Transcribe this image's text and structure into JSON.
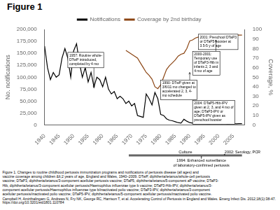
{
  "chart_data": {
    "type": "line",
    "title": "Figure 1",
    "ylabel": "No. notifications",
    "y2label": "Coverage, %",
    "xlim": [
      1940,
      2009
    ],
    "xticks": [
      1940,
      1945,
      1950,
      1955,
      1960,
      1965,
      1970,
      1975,
      1980,
      1985,
      1990,
      1995,
      2000,
      2005
    ],
    "ylim": [
      0,
      200000
    ],
    "yticks": [
      0,
      {
        "value": 25000,
        "label": "25,000"
      },
      {
        "value": 50000,
        "label": "50,000"
      },
      {
        "value": 75000,
        "label": "75,000"
      },
      {
        "value": 100000,
        "label": "100,000"
      },
      {
        "value": 125000,
        "label": "125,000"
      },
      {
        "value": 150000,
        "label": "150,000"
      },
      {
        "value": 175000,
        "label": "175,000"
      },
      {
        "value": 200000,
        "label": "200,000"
      }
    ],
    "y2lim": [
      0,
      100
    ],
    "y2ticks": [
      0,
      10,
      20,
      30,
      40,
      50,
      60,
      70,
      80,
      90,
      100
    ],
    "grid": false,
    "legend": "top",
    "series": [
      {
        "name": "Notifications",
        "color": "#000000",
        "x": [
          1940,
          1941,
          1942,
          1943,
          1944,
          1945,
          1946,
          1947,
          1948,
          1949,
          1950,
          1951,
          1952,
          1953,
          1954,
          1955,
          1956,
          1957,
          1958,
          1959,
          1960,
          1961,
          1962,
          1963,
          1964,
          1965,
          1966,
          1967,
          1968,
          1969,
          1970,
          1971,
          1972,
          1973,
          1974,
          1975,
          1976,
          1977,
          1978,
          1979,
          1980,
          1981,
          1982,
          1983,
          1984,
          1985,
          1986,
          1987,
          1988,
          1989,
          1990,
          1991,
          1992,
          1993,
          1994,
          1995,
          1996,
          1997,
          1998,
          1999,
          2000,
          2001,
          2002,
          2003,
          2004,
          2005,
          2006,
          2007,
          2008
        ],
        "values": [
          165000,
          120000,
          95000,
          110000,
          100000,
          105000,
          140000,
          160000,
          140000,
          100000,
          155000,
          170000,
          130000,
          100000,
          120000,
          90000,
          110000,
          80000,
          100000,
          95000,
          80000,
          100000,
          75000,
          65000,
          70000,
          55000,
          60000,
          55000,
          45000,
          50000,
          40000,
          45000,
          20000,
          18000,
          16000,
          65000,
          55000,
          42000,
          68000,
          55000,
          22000,
          20000,
          13000,
          10000,
          9000,
          7000,
          5000,
          4000,
          12000,
          8000,
          5000,
          4000,
          3000,
          4000,
          4000,
          4000,
          3000,
          3000,
          5000,
          4000,
          4000,
          3000,
          3500,
          2500,
          3000,
          2800,
          2500,
          2800,
          3000
        ]
      },
      {
        "name": "Coverage by 2nd birthday",
        "color": "#8B4513",
        "axis": "y2",
        "x": [
          1968,
          1969,
          1970,
          1971,
          1972,
          1973,
          1974,
          1975,
          1976,
          1977,
          1978,
          1979,
          1980,
          1981,
          1982,
          1983,
          1984,
          1985,
          1986,
          1987,
          1988,
          1989,
          1990,
          1991,
          1992,
          1993,
          1994,
          1995,
          1996,
          1997,
          1998,
          1999,
          2000,
          2001,
          2002,
          2003,
          2004,
          2005,
          2006,
          2007,
          2008
        ],
        "values": [
          78,
          76,
          74,
          72,
          70,
          65,
          60,
          55,
          52,
          48,
          40,
          38,
          42,
          50,
          58,
          62,
          65,
          68,
          72,
          74,
          75,
          80,
          88,
          89,
          91,
          92,
          93,
          93,
          93,
          94,
          94,
          94,
          93,
          94,
          93,
          94,
          94,
          94,
          94,
          94,
          94
        ]
      }
    ],
    "annotations": [
      {
        "text": "1957: Routine whole-\nDTwP introduced,\ncompleted by 4 mo",
        "x": 1957,
        "y": 78000
      },
      {
        "text": "2001: Preschool DTaP3\nor DTaP5 booster at\n3.5-5 y of age",
        "x": 2001,
        "y": 93,
        "axis": "y2"
      },
      {
        "text": "2000-2001:\nTemporary use\nof DTaP3-Hib in\ninfants 2, 3 and\n4 mo of age",
        "x": 1999,
        "y": 89,
        "axis": "y2"
      },
      {
        "text": "1990: DTwP given at\n3/6/11 mo changed to\naccelerated 2, 3, 4-\nmo schedule",
        "x": 1990,
        "y": 55,
        "axis": "y2"
      },
      {
        "text": "2004: DTaP5-Hib-IPV\ngiven at 2, 3, and 4 mo of\nage; DTaP3-IPV or\nDTaP5-IPV given as\npreschool booster",
        "x": 2004,
        "y": 5,
        "axis": "y2"
      }
    ],
    "culture_bar": {
      "label": "Culture",
      "start": 1969,
      "end": 2008,
      "notes": [
        {
          "x": 1994,
          "text": "1994: Enhanced surveillance\nof laboratory-confirmed pertussis",
          "side": "below"
        },
        {
          "x": 2002,
          "text": "2002: Serology, PCR",
          "side": "above"
        }
      ]
    },
    "caption": [
      "Figure 1. Changes to routine childhood pertussis immunization programs and notifications of pertussis disease (all ages) and",
      "vaccine coverage among children &lt;2 years of age, England and Wales, 1940–2009. DTwP, diphtheria/tetanus/whole-cell pertussis",
      "vaccine; DTaP3, diphtheria/tetanus/3-component acellular pertussis vaccine; DTaP5, diphtheria/tetanus/5-component aP vaccine; DTaP3-",
      "Hib, diphtheria/tetanus/3-component acellular pertussis/Haemophilus influenzae type b vaccine; DTaP3-Hib-IPV, diphtheria/tetanus/3-",
      "component acellular pertussis/Haemophilus influenzae type b/inactivated polio vaccine; DTaP3-IPV, diphtheria/tetanus/3-component",
      "acellular pertussis/inactivated polio vaccine; DTaP5-IPV, diphtheria/tetanus/5-component acellular pertussis/inactivated polio vaccine."
    ],
    "references": [
      "Campbell H, Amirthalingam G, Andrews N, Fry NK, George RC, Harrison T, et al. Accelerating Control of Pertussis in England and Wales. Emerg Infect Dis. 2012;18(1):38-47.",
      "https://doi.org/10.3201/eid1801.110784"
    ]
  }
}
